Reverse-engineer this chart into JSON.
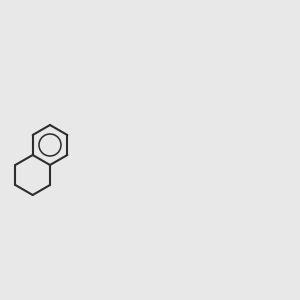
{
  "background_color": "#e8e8e8",
  "bond_color": "#2d2d2d",
  "figsize": [
    3.0,
    3.0
  ],
  "dpi": 100
}
